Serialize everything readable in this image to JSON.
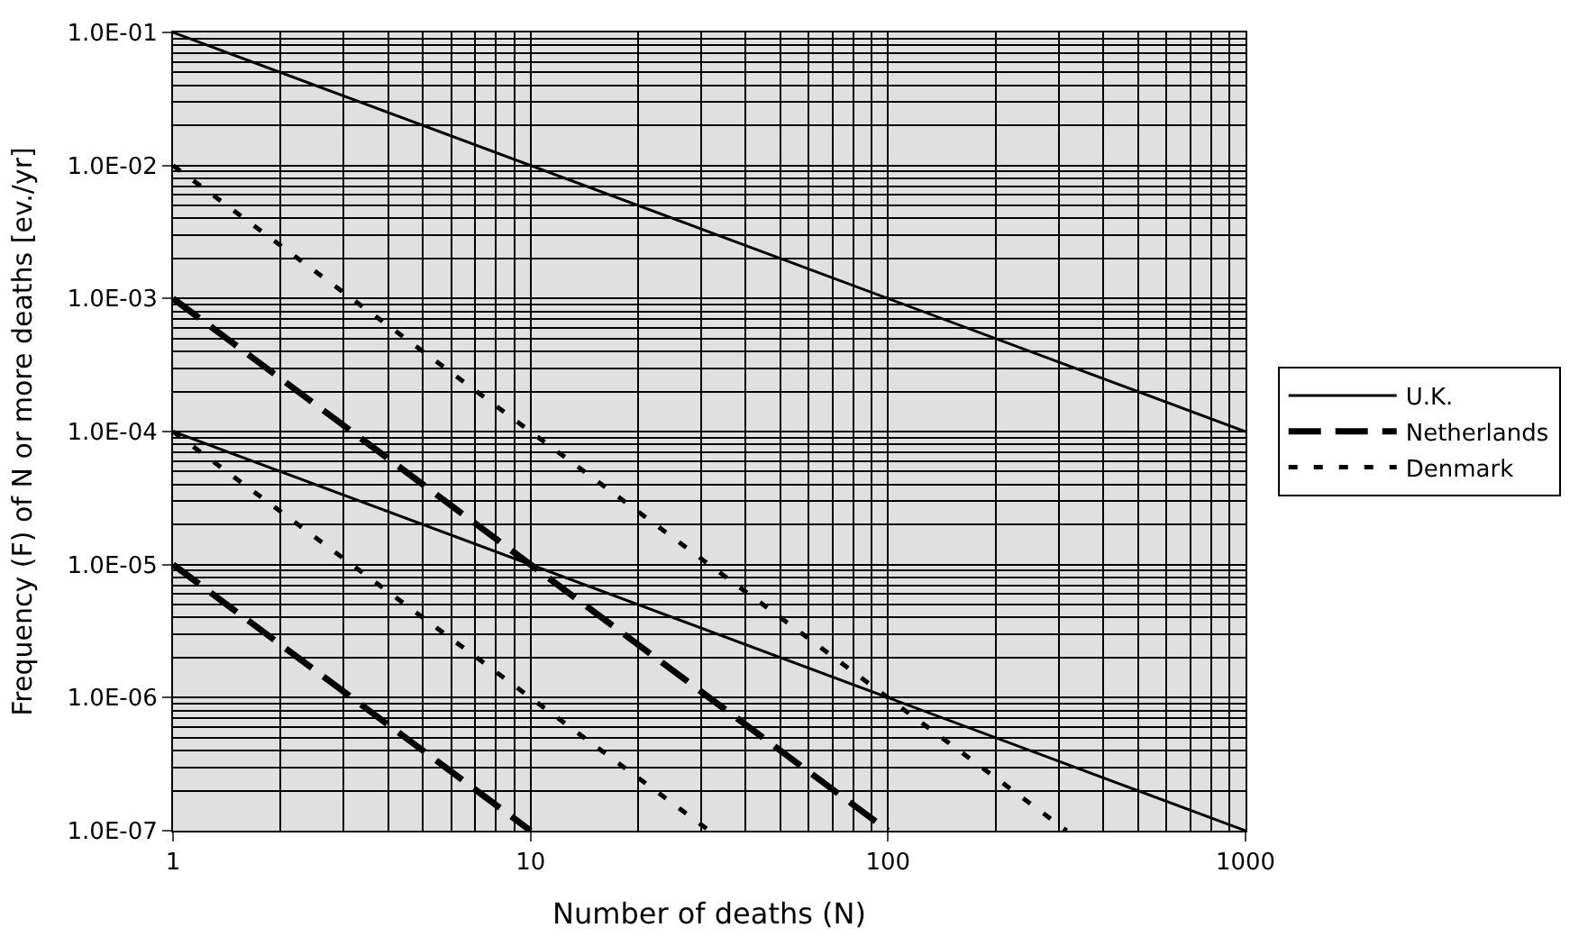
{
  "chart_data": {
    "type": "line",
    "xlabel": "Number of deaths (N)",
    "ylabel": "Frequency (F) of N or more deaths [ev./yr]",
    "log": "xy",
    "grid": true,
    "legend": "right",
    "marker": "none",
    "xlim": [
      1,
      1000
    ],
    "xticks": [
      1,
      10,
      100,
      1000
    ],
    "ylim": [
      1e-07,
      0.1
    ],
    "yticks": [
      {
        "value": 1e-07,
        "label": "1.0E-07"
      },
      {
        "value": 1e-06,
        "label": "1.0E-06"
      },
      {
        "value": 1e-05,
        "label": "1.0E-05"
      },
      {
        "value": 0.0001,
        "label": "1.0E-04"
      },
      {
        "value": 0.001,
        "label": "1.0E-03"
      },
      {
        "value": 0.01,
        "label": "1.0E-02"
      },
      {
        "value": 0.1,
        "label": "1.0E-01"
      }
    ],
    "series": [
      {
        "name": "U.K.",
        "color": "#000000",
        "line_style": "solid",
        "x": [
          1,
          1000
        ],
        "values": [
          0.1,
          0.0001
        ]
      },
      {
        "name": "Netherlands",
        "color": "#000000",
        "line_style": "dashed",
        "x": [
          1,
          100
        ],
        "values": [
          0.001,
          1e-07
        ]
      },
      {
        "name": "Denmark",
        "color": "#000000",
        "line_style": "dotted",
        "x": [
          1,
          316
        ],
        "values": [
          0.01,
          1e-07
        ]
      },
      {
        "color": "#000000",
        "line_style": "solid",
        "x": [
          1,
          1000
        ],
        "values": [
          0.0001,
          1e-07
        ]
      },
      {
        "color": "#000000",
        "line_style": "dashed",
        "x": [
          1,
          10
        ],
        "values": [
          1e-05,
          1e-07
        ]
      },
      {
        "color": "#000000",
        "line_style": "dotted",
        "x": [
          1,
          31.6
        ],
        "values": [
          0.0001,
          1e-07
        ]
      }
    ]
  }
}
